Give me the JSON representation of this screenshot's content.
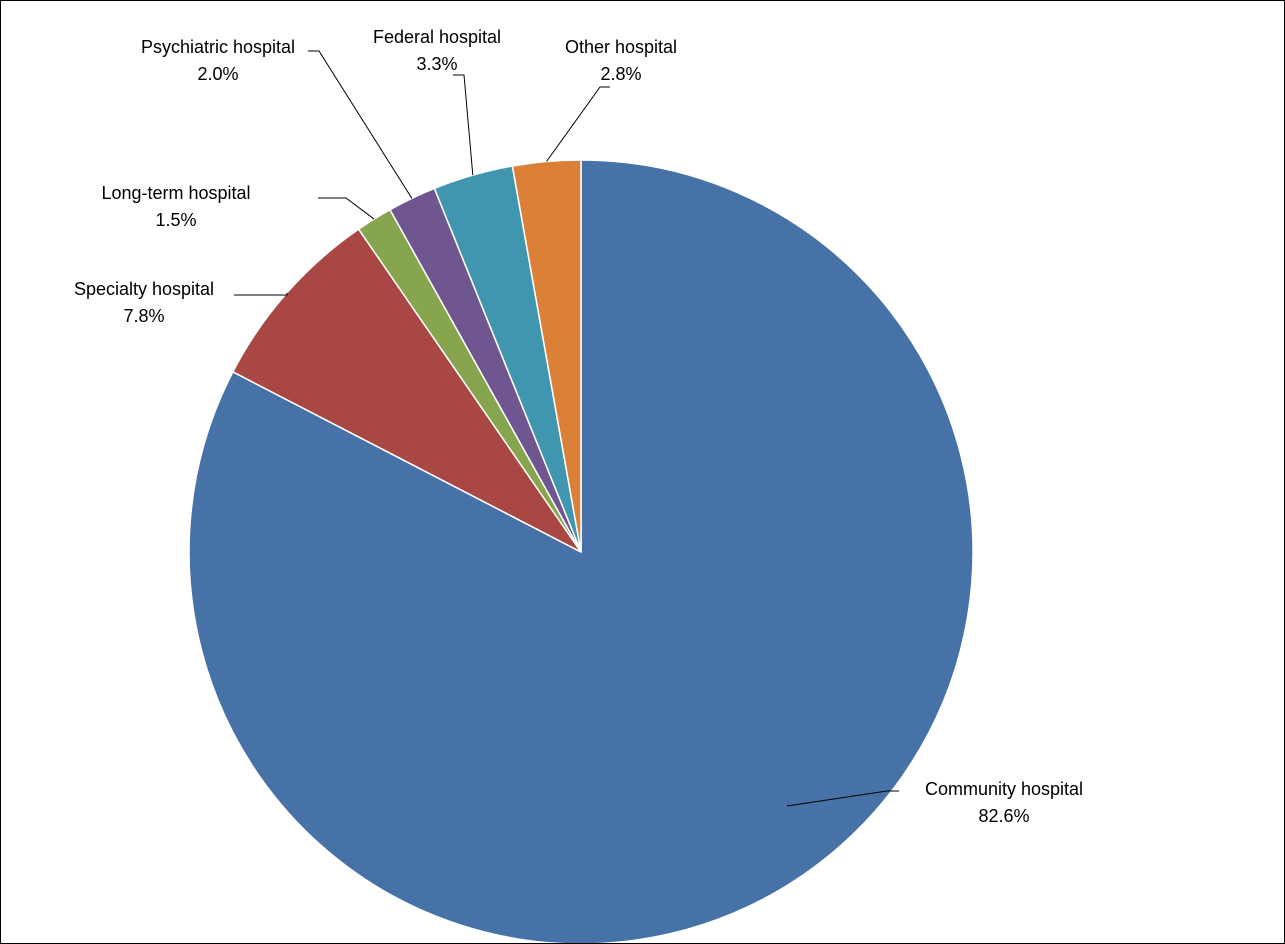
{
  "chart_data": {
    "type": "pie",
    "title": "",
    "start_angle_deg": 0,
    "direction": "clockwise",
    "slices": [
      {
        "name": "Community hospital",
        "value": 82.6,
        "label": "82.6%",
        "color": "#4672A8"
      },
      {
        "name": "Specialty hospital",
        "value": 7.8,
        "label": "7.8%",
        "color": "#A84744"
      },
      {
        "name": "Long-term hospital",
        "value": 1.5,
        "label": "1.5%",
        "color": "#87A44E"
      },
      {
        "name": "Psychiatric hospital",
        "value": 2.0,
        "label": "2.0%",
        "color": "#6F5690"
      },
      {
        "name": "Federal hospital",
        "value": 3.3,
        "label": "3.3%",
        "color": "#4096AF"
      },
      {
        "name": "Other hospital",
        "value": 2.8,
        "label": "2.8%",
        "color": "#DA8137"
      }
    ],
    "legend": "none",
    "data_labels": "outside with leader lines"
  }
}
